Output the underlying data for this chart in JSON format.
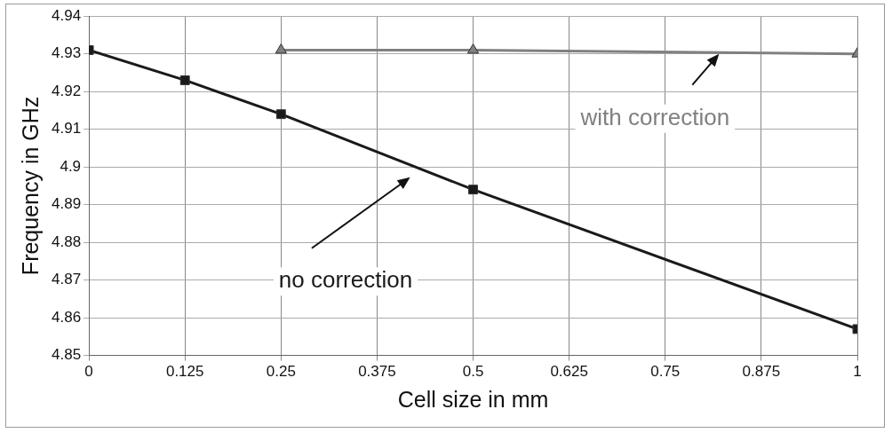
{
  "chart_data": {
    "type": "line",
    "xlabel": "Cell size in mm",
    "ylabel": "Frequency in GHz",
    "xlim": [
      0,
      1
    ],
    "xticks": [
      0,
      0.125,
      0.25,
      0.375,
      0.5,
      0.625,
      0.75,
      0.875,
      1
    ],
    "ylim": [
      4.85,
      4.94
    ],
    "yticks": [
      4.85,
      4.86,
      4.87,
      4.88,
      4.89,
      4.9,
      4.91,
      4.92,
      4.93,
      4.94
    ],
    "grid": true,
    "legend": false,
    "line_style": "solid",
    "series": [
      {
        "color": "#1a1a1a",
        "marker": "square",
        "x": [
          0,
          0.125,
          0.25,
          0.5,
          1
        ],
        "values": [
          4.931,
          4.923,
          4.914,
          4.894,
          4.857
        ]
      },
      {
        "color": "#808080",
        "marker": "triangle",
        "x": [
          0.25,
          0.5,
          1
        ],
        "values": [
          4.931,
          4.931,
          4.93
        ]
      }
    ],
    "annotations": [
      "no correction",
      {
        "text": "with correction",
        "x": 0.82,
        "y": 4.93
      }
    ]
  }
}
